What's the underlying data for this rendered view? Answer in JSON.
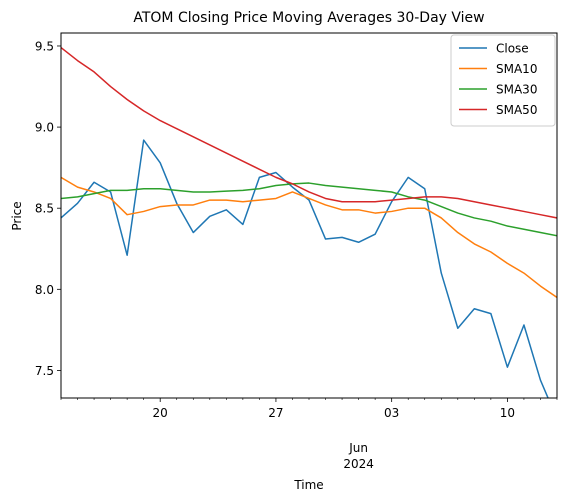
{
  "chart_data": {
    "type": "line",
    "title": "ATOM Closing Price Moving Averages 30-Day View",
    "xlabel": "Time",
    "ylabel": "Price",
    "x": [
      "2024-05-14",
      "2024-05-15",
      "2024-05-16",
      "2024-05-17",
      "2024-05-18",
      "2024-05-19",
      "2024-05-20",
      "2024-05-21",
      "2024-05-22",
      "2024-05-23",
      "2024-05-24",
      "2024-05-25",
      "2024-05-26",
      "2024-05-27",
      "2024-05-28",
      "2024-05-29",
      "2024-05-30",
      "2024-05-31",
      "2024-06-01",
      "2024-06-02",
      "2024-06-03",
      "2024-06-04",
      "2024-06-05",
      "2024-06-06",
      "2024-06-07",
      "2024-06-08",
      "2024-06-09",
      "2024-06-10",
      "2024-06-11",
      "2024-06-12",
      "2024-06-13"
    ],
    "xlim": [
      "2024-05-14",
      "2024-06-13"
    ],
    "ylim": [
      7.33,
      9.58
    ],
    "x_ticks": [
      {
        "date": "2024-05-20",
        "label": "20"
      },
      {
        "date": "2024-05-27",
        "label": "27"
      },
      {
        "date": "2024-06-03",
        "label": "03"
      },
      {
        "date": "2024-06-10",
        "label": "10"
      }
    ],
    "x_month_label": "Jun",
    "x_year_label": "2024",
    "x_month_label_date": "2024-06-01",
    "y_ticks": [
      7.5,
      8.0,
      8.5,
      9.0,
      9.5
    ],
    "y_tick_labels": [
      "7.5",
      "8.0",
      "8.5",
      "9.0",
      "9.5"
    ],
    "grid": false,
    "legend_position": "top-right",
    "series": [
      {
        "name": "Close",
        "color": "#1f77b4",
        "values": [
          8.44,
          8.53,
          8.66,
          8.6,
          8.21,
          8.92,
          8.78,
          8.53,
          8.35,
          8.45,
          8.49,
          8.4,
          8.69,
          8.72,
          8.63,
          8.55,
          8.31,
          8.32,
          8.29,
          8.34,
          8.54,
          8.69,
          8.62,
          8.1,
          7.76,
          7.88,
          7.85,
          7.52,
          7.78,
          7.44,
          7.2
        ]
      },
      {
        "name": "SMA10",
        "color": "#ff7f0e",
        "values": [
          8.69,
          8.63,
          8.6,
          8.56,
          8.46,
          8.48,
          8.51,
          8.52,
          8.52,
          8.55,
          8.55,
          8.54,
          8.55,
          8.56,
          8.6,
          8.56,
          8.52,
          8.49,
          8.49,
          8.47,
          8.48,
          8.5,
          8.5,
          8.44,
          8.35,
          8.28,
          8.23,
          8.16,
          8.1,
          8.02,
          7.95
        ]
      },
      {
        "name": "SMA30",
        "color": "#2ca02c",
        "values": [
          8.56,
          8.57,
          8.59,
          8.61,
          8.61,
          8.62,
          8.62,
          8.61,
          8.6,
          8.6,
          8.605,
          8.61,
          8.62,
          8.64,
          8.65,
          8.655,
          8.64,
          8.63,
          8.62,
          8.61,
          8.6,
          8.57,
          8.55,
          8.51,
          8.47,
          8.44,
          8.42,
          8.39,
          8.37,
          8.35,
          8.33
        ]
      },
      {
        "name": "SMA50",
        "color": "#d62728",
        "values": [
          9.49,
          9.41,
          9.34,
          9.25,
          9.17,
          9.1,
          9.04,
          8.99,
          8.94,
          8.89,
          8.84,
          8.79,
          8.74,
          8.69,
          8.65,
          8.6,
          8.56,
          8.54,
          8.54,
          8.54,
          8.55,
          8.56,
          8.57,
          8.57,
          8.56,
          8.54,
          8.52,
          8.5,
          8.48,
          8.46,
          8.44
        ]
      }
    ]
  }
}
